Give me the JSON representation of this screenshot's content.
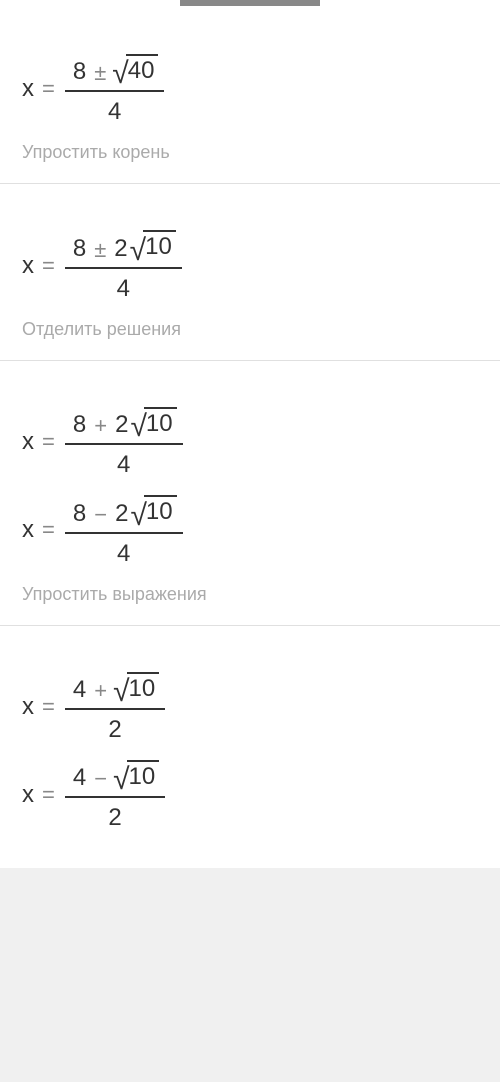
{
  "colors": {
    "text": "#333333",
    "muted": "#aaaaaa",
    "operator": "#888888",
    "border": "#e0e0e0",
    "background": "#ffffff"
  },
  "typography": {
    "equation_fontsize": 24,
    "instruction_fontsize": 18,
    "font_family": "Arial"
  },
  "variable": "x",
  "equals": "=",
  "symbols": {
    "pm": "±",
    "plus": "+",
    "minus": "−",
    "sqrt": "√"
  },
  "steps": [
    {
      "equations": [
        {
          "num_a": "8",
          "op": "pm",
          "coef": "",
          "radicand": "40",
          "denom": "4"
        }
      ],
      "instruction": "Упростить корень"
    },
    {
      "equations": [
        {
          "num_a": "8",
          "op": "pm",
          "coef": "2",
          "radicand": "10",
          "denom": "4"
        }
      ],
      "instruction": "Отделить решения"
    },
    {
      "equations": [
        {
          "num_a": "8",
          "op": "plus",
          "coef": "2",
          "radicand": "10",
          "denom": "4"
        },
        {
          "num_a": "8",
          "op": "minus",
          "coef": "2",
          "radicand": "10",
          "denom": "4"
        }
      ],
      "instruction": "Упростить выражения"
    },
    {
      "equations": [
        {
          "num_a": "4",
          "op": "plus",
          "coef": "",
          "radicand": "10",
          "denom": "2"
        },
        {
          "num_a": "4",
          "op": "minus",
          "coef": "",
          "radicand": "10",
          "denom": "2"
        }
      ],
      "instruction": ""
    }
  ]
}
